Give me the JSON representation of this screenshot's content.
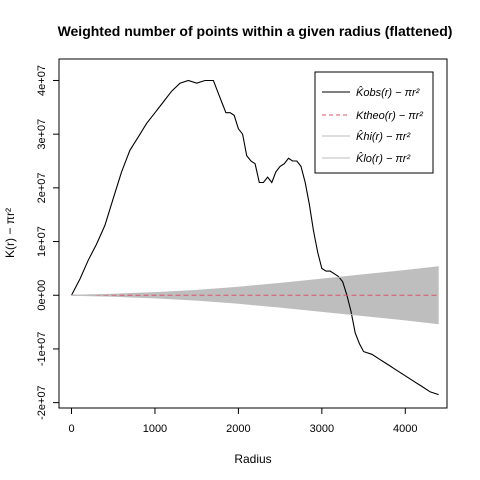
{
  "chart_data": {
    "type": "line",
    "title": "Weighted number of points within a given radius (flattened)",
    "xlabel": "Radius",
    "ylabel": "K(r) − πr²",
    "xlim": [
      -150,
      4500
    ],
    "ylim": [
      -21000000,
      44000000
    ],
    "x_ticks": [
      0,
      1000,
      2000,
      3000,
      4000
    ],
    "x_tick_labels": [
      "0",
      "1000",
      "2000",
      "3000",
      "4000"
    ],
    "y_ticks": [
      -20000000,
      -10000000,
      0,
      10000000,
      20000000,
      30000000,
      40000000
    ],
    "y_tick_labels": [
      "-2e+07",
      "-1e+07",
      "0e+00",
      "1e+07",
      "2e+07",
      "3e+07",
      "4e+07"
    ],
    "legend": {
      "position": "top-right",
      "entries": [
        {
          "label": "K̂obs(r) − πr²",
          "color": "#000000",
          "style": "solid"
        },
        {
          "label": "Ktheo(r) − πr²",
          "color": "#DF536B",
          "style": "dashed"
        },
        {
          "label": "K̂hi(r) − πr²",
          "color": "#BEBEBE",
          "style": "solid"
        },
        {
          "label": "K̂lo(r) − πr²",
          "color": "#BEBEBE",
          "style": "solid"
        }
      ]
    },
    "series": [
      {
        "name": "K̂obs(r) − πr²",
        "color": "#000000",
        "x": [
          0,
          100,
          200,
          300,
          400,
          500,
          600,
          700,
          800,
          900,
          1000,
          1100,
          1200,
          1300,
          1400,
          1500,
          1600,
          1700,
          1750,
          1800,
          1850,
          1900,
          1950,
          2000,
          2050,
          2100,
          2150,
          2200,
          2250,
          2300,
          2350,
          2400,
          2450,
          2500,
          2550,
          2600,
          2650,
          2700,
          2750,
          2800,
          2850,
          2900,
          2950,
          3000,
          3050,
          3100,
          3150,
          3200,
          3250,
          3300,
          3350,
          3400,
          3450,
          3500,
          3600,
          3700,
          3800,
          3900,
          4000,
          4100,
          4200,
          4300,
          4400
        ],
        "y": [
          0,
          3000000,
          6500000,
          9500000,
          13000000,
          18000000,
          23000000,
          27000000,
          29500000,
          32000000,
          34000000,
          36000000,
          38000000,
          39500000,
          40000000,
          39500000,
          40000000,
          40000000,
          38000000,
          36000000,
          34000000,
          34000000,
          33500000,
          31000000,
          30000000,
          26000000,
          25000000,
          24500000,
          21000000,
          21000000,
          22000000,
          21000000,
          23000000,
          24000000,
          24500000,
          25500000,
          25000000,
          25000000,
          24000000,
          21000000,
          17000000,
          12000000,
          8000000,
          5000000,
          4500000,
          4500000,
          4000000,
          3500000,
          2500000,
          0,
          -3000000,
          -7000000,
          -9000000,
          -10500000,
          -11000000,
          -12000000,
          -13000000,
          -14000000,
          -15000000,
          -16000000,
          -17000000,
          -18000000,
          -18500000
        ]
      },
      {
        "name": "Ktheo(r) − πr²",
        "color": "#DF536B",
        "x": [
          0,
          4400
        ],
        "y": [
          0,
          0
        ]
      },
      {
        "name": "K̂hi(r) − πr²",
        "color": "#BEBEBE",
        "x": [
          0,
          500,
          1000,
          1500,
          2000,
          2500,
          3000,
          3500,
          4000,
          4400
        ],
        "y": [
          0,
          200000,
          500000,
          900000,
          1500000,
          2200000,
          3000000,
          3800000,
          4600000,
          5300000
        ]
      },
      {
        "name": "K̂lo(r) − πr²",
        "color": "#BEBEBE",
        "x": [
          0,
          500,
          1000,
          1500,
          2000,
          2500,
          3000,
          3500,
          4000,
          4400
        ],
        "y": [
          0,
          -200000,
          -500000,
          -900000,
          -1500000,
          -2200000,
          -3000000,
          -3800000,
          -4600000,
          -5300000
        ]
      }
    ]
  }
}
